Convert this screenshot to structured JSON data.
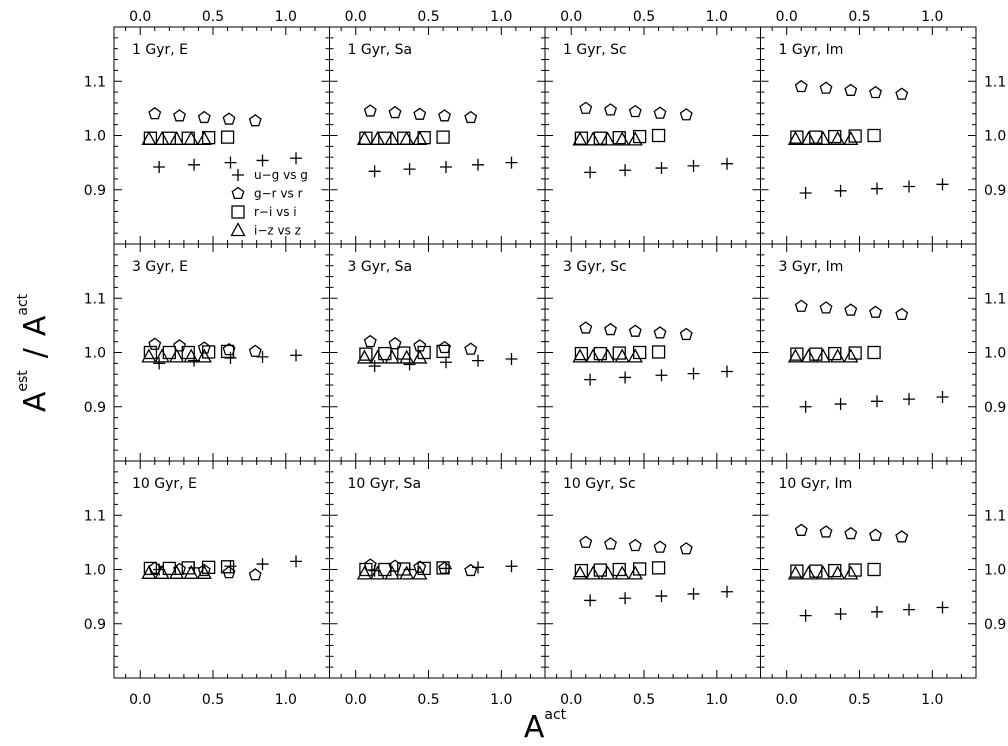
{
  "chart_data": {
    "type": "scatter",
    "layout": {
      "rows": 3,
      "cols": 4
    },
    "xlabel_base": "A",
    "xlabel_sup": "act",
    "ylabel_num_base": "A",
    "ylabel_num_sup": "est",
    "ylabel_sep": "/",
    "ylabel_den_base": "A",
    "ylabel_den_sup": "act",
    "xlim": [
      -0.18,
      1.3
    ],
    "ylim": [
      0.8,
      1.2
    ],
    "xticks_bottom": [
      "0.0",
      "0.5",
      "1.0"
    ],
    "xticks_top": [
      "0.0",
      "0.5",
      "1.0"
    ],
    "xtick_values": [
      0.0,
      0.5,
      1.0
    ],
    "yticks": [
      "0.9",
      "1.0",
      "1.1"
    ],
    "ytick_values": [
      0.9,
      1.0,
      1.1
    ],
    "legend": {
      "location": "lower-right",
      "entries": [
        {
          "marker": "plus",
          "label": "u−g vs g"
        },
        {
          "marker": "pentagon",
          "label": "g−r vs r"
        },
        {
          "marker": "square",
          "label": "r−i vs i"
        },
        {
          "marker": "triangle",
          "label": "i−z vs z"
        }
      ]
    },
    "panels": [
      {
        "title": "1 Gyr, E",
        "series": [
          {
            "marker": "plus",
            "x": [
              0.13,
              0.37,
              0.62,
              0.84,
              1.07
            ],
            "y": [
              0.942,
              0.946,
              0.95,
              0.954,
              0.958
            ]
          },
          {
            "marker": "pentagon",
            "x": [
              0.1,
              0.27,
              0.44,
              0.61,
              0.79
            ],
            "y": [
              1.04,
              1.036,
              1.033,
              1.03,
              1.027
            ]
          },
          {
            "marker": "square",
            "x": [
              0.07,
              0.2,
              0.33,
              0.47,
              0.6
            ],
            "y": [
              0.995,
              0.995,
              0.995,
              0.996,
              0.997
            ]
          },
          {
            "marker": "triangle",
            "x": [
              0.06,
              0.15,
              0.25,
              0.35,
              0.44
            ],
            "y": [
              0.993,
              0.993,
              0.993,
              0.993,
              0.993
            ]
          }
        ]
      },
      {
        "title": "1 Gyr, Sa",
        "series": [
          {
            "marker": "plus",
            "x": [
              0.13,
              0.37,
              0.62,
              0.84,
              1.07
            ],
            "y": [
              0.934,
              0.938,
              0.942,
              0.946,
              0.95
            ]
          },
          {
            "marker": "pentagon",
            "x": [
              0.1,
              0.27,
              0.44,
              0.61,
              0.79
            ],
            "y": [
              1.045,
              1.042,
              1.039,
              1.036,
              1.033
            ]
          },
          {
            "marker": "square",
            "x": [
              0.07,
              0.2,
              0.33,
              0.47,
              0.6
            ],
            "y": [
              0.995,
              0.995,
              0.995,
              0.996,
              0.997
            ]
          },
          {
            "marker": "triangle",
            "x": [
              0.06,
              0.15,
              0.25,
              0.35,
              0.44
            ],
            "y": [
              0.993,
              0.993,
              0.993,
              0.993,
              0.993
            ]
          }
        ]
      },
      {
        "title": "1 Gyr, Sc",
        "series": [
          {
            "marker": "plus",
            "x": [
              0.13,
              0.37,
              0.62,
              0.84,
              1.07
            ],
            "y": [
              0.932,
              0.936,
              0.94,
              0.944,
              0.948
            ]
          },
          {
            "marker": "pentagon",
            "x": [
              0.1,
              0.27,
              0.44,
              0.61,
              0.79
            ],
            "y": [
              1.05,
              1.047,
              1.044,
              1.041,
              1.038
            ]
          },
          {
            "marker": "square",
            "x": [
              0.07,
              0.2,
              0.33,
              0.47,
              0.6
            ],
            "y": [
              0.995,
              0.995,
              0.996,
              0.998,
              1.0
            ]
          },
          {
            "marker": "triangle",
            "x": [
              0.06,
              0.15,
              0.25,
              0.35,
              0.44
            ],
            "y": [
              0.992,
              0.992,
              0.992,
              0.992,
              0.992
            ]
          }
        ]
      },
      {
        "title": "1 Gyr, Im",
        "series": [
          {
            "marker": "plus",
            "x": [
              0.13,
              0.37,
              0.62,
              0.84,
              1.07
            ],
            "y": [
              0.894,
              0.898,
              0.902,
              0.906,
              0.91
            ]
          },
          {
            "marker": "pentagon",
            "x": [
              0.1,
              0.27,
              0.44,
              0.61,
              0.79
            ],
            "y": [
              1.09,
              1.087,
              1.083,
              1.079,
              1.076
            ]
          },
          {
            "marker": "square",
            "x": [
              0.07,
              0.2,
              0.33,
              0.47,
              0.6
            ],
            "y": [
              0.997,
              0.997,
              0.998,
              0.999,
              1.0
            ]
          },
          {
            "marker": "triangle",
            "x": [
              0.06,
              0.15,
              0.25,
              0.35,
              0.44
            ],
            "y": [
              0.993,
              0.993,
              0.993,
              0.993,
              0.993
            ]
          }
        ]
      },
      {
        "title": "3 Gyr, E",
        "series": [
          {
            "marker": "plus",
            "x": [
              0.13,
              0.37,
              0.62,
              0.84,
              1.07
            ],
            "y": [
              0.98,
              0.985,
              0.99,
              0.992,
              0.995
            ]
          },
          {
            "marker": "pentagon",
            "x": [
              0.1,
              0.27,
              0.44,
              0.61,
              0.79
            ],
            "y": [
              1.015,
              1.012,
              1.008,
              1.005,
              1.002
            ]
          },
          {
            "marker": "square",
            "x": [
              0.07,
              0.2,
              0.33,
              0.47,
              0.6
            ],
            "y": [
              1.0,
              1.0,
              1.0,
              1.001,
              1.002
            ]
          },
          {
            "marker": "triangle",
            "x": [
              0.06,
              0.15,
              0.25,
              0.35,
              0.44
            ],
            "y": [
              0.992,
              0.992,
              0.992,
              0.992,
              0.992
            ]
          }
        ]
      },
      {
        "title": "3 Gyr, Sa",
        "series": [
          {
            "marker": "plus",
            "x": [
              0.13,
              0.37,
              0.62,
              0.84,
              1.07
            ],
            "y": [
              0.975,
              0.978,
              0.982,
              0.985,
              0.988
            ]
          },
          {
            "marker": "pentagon",
            "x": [
              0.1,
              0.27,
              0.44,
              0.61,
              0.79
            ],
            "y": [
              1.02,
              1.016,
              1.012,
              1.009,
              1.006
            ]
          },
          {
            "marker": "square",
            "x": [
              0.07,
              0.2,
              0.33,
              0.47,
              0.6
            ],
            "y": [
              0.997,
              0.998,
              0.999,
              1.0,
              1.002
            ]
          },
          {
            "marker": "triangle",
            "x": [
              0.06,
              0.15,
              0.25,
              0.35,
              0.44
            ],
            "y": [
              0.99,
              0.99,
              0.99,
              0.99,
              0.99
            ]
          }
        ]
      },
      {
        "title": "3 Gyr, Sc",
        "series": [
          {
            "marker": "plus",
            "x": [
              0.13,
              0.37,
              0.62,
              0.84,
              1.07
            ],
            "y": [
              0.95,
              0.954,
              0.958,
              0.961,
              0.965
            ]
          },
          {
            "marker": "pentagon",
            "x": [
              0.1,
              0.27,
              0.44,
              0.61,
              0.79
            ],
            "y": [
              1.045,
              1.042,
              1.039,
              1.036,
              1.033
            ]
          },
          {
            "marker": "square",
            "x": [
              0.07,
              0.2,
              0.33,
              0.47,
              0.6
            ],
            "y": [
              0.998,
              0.998,
              0.999,
              1.0,
              1.001
            ]
          },
          {
            "marker": "triangle",
            "x": [
              0.06,
              0.15,
              0.25,
              0.35,
              0.44
            ],
            "y": [
              0.992,
              0.992,
              0.992,
              0.992,
              0.992
            ]
          }
        ]
      },
      {
        "title": "3 Gyr, Im",
        "series": [
          {
            "marker": "plus",
            "x": [
              0.13,
              0.37,
              0.62,
              0.84,
              1.07
            ],
            "y": [
              0.9,
              0.905,
              0.91,
              0.914,
              0.918
            ]
          },
          {
            "marker": "pentagon",
            "x": [
              0.1,
              0.27,
              0.44,
              0.61,
              0.79
            ],
            "y": [
              1.085,
              1.082,
              1.078,
              1.074,
              1.07
            ]
          },
          {
            "marker": "square",
            "x": [
              0.07,
              0.2,
              0.33,
              0.47,
              0.6
            ],
            "y": [
              0.997,
              0.997,
              0.998,
              0.999,
              1.0
            ]
          },
          {
            "marker": "triangle",
            "x": [
              0.06,
              0.15,
              0.25,
              0.35,
              0.44
            ],
            "y": [
              0.992,
              0.992,
              0.992,
              0.992,
              0.992
            ]
          }
        ]
      },
      {
        "title": "10 Gyr, E",
        "series": [
          {
            "marker": "plus",
            "x": [
              0.13,
              0.37,
              0.62,
              0.84,
              1.07
            ],
            "y": [
              1.0,
              1.003,
              1.006,
              1.01,
              1.015
            ]
          },
          {
            "marker": "pentagon",
            "x": [
              0.1,
              0.27,
              0.44,
              0.61,
              0.79
            ],
            "y": [
              1.002,
              1.0,
              0.998,
              0.994,
              0.99
            ]
          },
          {
            "marker": "square",
            "x": [
              0.07,
              0.2,
              0.33,
              0.47,
              0.6
            ],
            "y": [
              1.002,
              1.002,
              1.003,
              1.004,
              1.005
            ]
          },
          {
            "marker": "triangle",
            "x": [
              0.06,
              0.15,
              0.25,
              0.35,
              0.44
            ],
            "y": [
              0.993,
              0.993,
              0.993,
              0.993,
              0.993
            ]
          }
        ]
      },
      {
        "title": "10 Gyr, Sa",
        "series": [
          {
            "marker": "plus",
            "x": [
              0.13,
              0.37,
              0.62,
              0.84,
              1.07
            ],
            "y": [
              0.998,
              1.0,
              1.002,
              1.004,
              1.006
            ]
          },
          {
            "marker": "pentagon",
            "x": [
              0.1,
              0.27,
              0.44,
              0.61,
              0.79
            ],
            "y": [
              1.008,
              1.006,
              1.004,
              1.002,
              0.998
            ]
          },
          {
            "marker": "square",
            "x": [
              0.07,
              0.2,
              0.33,
              0.47,
              0.6
            ],
            "y": [
              1.0,
              1.0,
              1.001,
              1.002,
              1.003
            ]
          },
          {
            "marker": "triangle",
            "x": [
              0.06,
              0.15,
              0.25,
              0.35,
              0.44
            ],
            "y": [
              0.992,
              0.992,
              0.992,
              0.992,
              0.992
            ]
          }
        ]
      },
      {
        "title": "10 Gyr, Sc",
        "series": [
          {
            "marker": "plus",
            "x": [
              0.13,
              0.37,
              0.62,
              0.84,
              1.07
            ],
            "y": [
              0.943,
              0.947,
              0.951,
              0.955,
              0.959
            ]
          },
          {
            "marker": "pentagon",
            "x": [
              0.1,
              0.27,
              0.44,
              0.61,
              0.79
            ],
            "y": [
              1.05,
              1.047,
              1.044,
              1.041,
              1.038
            ]
          },
          {
            "marker": "square",
            "x": [
              0.07,
              0.2,
              0.33,
              0.47,
              0.6
            ],
            "y": [
              0.998,
              0.999,
              1.0,
              1.001,
              1.003
            ]
          },
          {
            "marker": "triangle",
            "x": [
              0.06,
              0.15,
              0.25,
              0.35,
              0.44
            ],
            "y": [
              0.992,
              0.992,
              0.992,
              0.992,
              0.992
            ]
          }
        ]
      },
      {
        "title": "10 Gyr, Im",
        "series": [
          {
            "marker": "plus",
            "x": [
              0.13,
              0.37,
              0.62,
              0.84,
              1.07
            ],
            "y": [
              0.915,
              0.918,
              0.922,
              0.926,
              0.93
            ]
          },
          {
            "marker": "pentagon",
            "x": [
              0.1,
              0.27,
              0.44,
              0.61,
              0.79
            ],
            "y": [
              1.072,
              1.069,
              1.066,
              1.063,
              1.06
            ]
          },
          {
            "marker": "square",
            "x": [
              0.07,
              0.2,
              0.33,
              0.47,
              0.6
            ],
            "y": [
              0.997,
              0.997,
              0.998,
              0.999,
              1.0
            ]
          },
          {
            "marker": "triangle",
            "x": [
              0.06,
              0.15,
              0.25,
              0.35,
              0.44
            ],
            "y": [
              0.992,
              0.992,
              0.992,
              0.992,
              0.992
            ]
          }
        ]
      }
    ]
  }
}
